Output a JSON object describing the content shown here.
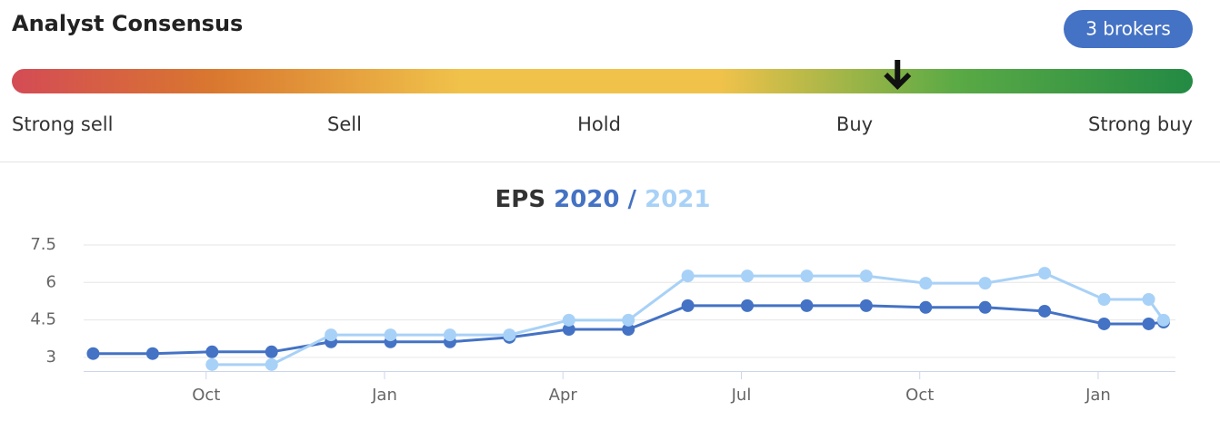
{
  "header": {
    "title": "Analyst Consensus",
    "brokers": "3 brokers"
  },
  "gauge": {
    "labels": [
      "Strong sell",
      "Sell",
      "Hold",
      "Buy",
      "Strong buy"
    ],
    "score": 4,
    "range": [
      1,
      5
    ]
  },
  "chart_data": {
    "type": "line",
    "title": "EPS",
    "title_separator": "/",
    "x": [
      0.1,
      1.1,
      2.1,
      3.1,
      4.1,
      5.1,
      6.1,
      7.1,
      8.1,
      9.1,
      10.1,
      11.1,
      12.1,
      13.1,
      14.1,
      15.1,
      16.1,
      17.1,
      17.85,
      18.1
    ],
    "series": [
      {
        "name": "2020",
        "color": "#4472c4",
        "values": [
          3.15,
          3.15,
          3.22,
          3.22,
          3.62,
          3.62,
          3.62,
          3.8,
          4.12,
          4.12,
          5.07,
          5.07,
          5.07,
          5.07,
          5.0,
          5.0,
          4.85,
          4.34,
          4.34,
          4.41
        ]
      },
      {
        "name": "2021",
        "color": "#a8d1f7",
        "values": [
          null,
          null,
          2.71,
          2.71,
          3.9,
          3.9,
          3.9,
          3.9,
          4.49,
          4.49,
          6.26,
          6.26,
          6.26,
          6.26,
          5.97,
          5.97,
          6.37,
          5.32,
          5.32,
          4.49
        ]
      }
    ],
    "xlim": [
      -0.06,
      18.3
    ],
    "xticks": [
      {
        "value": 2,
        "label": "Oct"
      },
      {
        "value": 5,
        "label": "Jan"
      },
      {
        "value": 8,
        "label": "Apr"
      },
      {
        "value": 11,
        "label": "Jul"
      },
      {
        "value": 14,
        "label": "Oct"
      },
      {
        "value": 17,
        "label": "Jan"
      }
    ],
    "ylim": [
      2.45,
      7.5
    ],
    "yticks": [
      3,
      4.5,
      6,
      7.5
    ],
    "grid": true
  }
}
